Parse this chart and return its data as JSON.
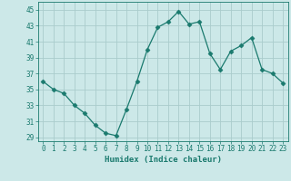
{
  "x": [
    0,
    1,
    2,
    3,
    4,
    5,
    6,
    7,
    8,
    9,
    10,
    11,
    12,
    13,
    14,
    15,
    16,
    17,
    18,
    19,
    20,
    21,
    22,
    23
  ],
  "y": [
    36,
    35,
    34.5,
    33,
    32,
    30.5,
    29.5,
    29.2,
    32.5,
    36,
    40,
    42.8,
    43.5,
    44.8,
    43.2,
    43.5,
    39.5,
    37.5,
    39.8,
    40.5,
    41.5,
    37.5,
    37,
    35.8
  ],
  "line_color": "#1a7a6e",
  "marker": "D",
  "markersize": 2.5,
  "bg_color": "#cce8e8",
  "grid_color": "#aacccc",
  "xlabel": "Humidex (Indice chaleur)",
  "xlim": [
    -0.5,
    23.5
  ],
  "ylim": [
    28.5,
    46
  ],
  "yticks": [
    29,
    31,
    33,
    35,
    37,
    39,
    41,
    43,
    45
  ],
  "xticks": [
    0,
    1,
    2,
    3,
    4,
    5,
    6,
    7,
    8,
    9,
    10,
    11,
    12,
    13,
    14,
    15,
    16,
    17,
    18,
    19,
    20,
    21,
    22,
    23
  ],
  "tick_fontsize": 5.5,
  "label_fontsize": 6.5
}
